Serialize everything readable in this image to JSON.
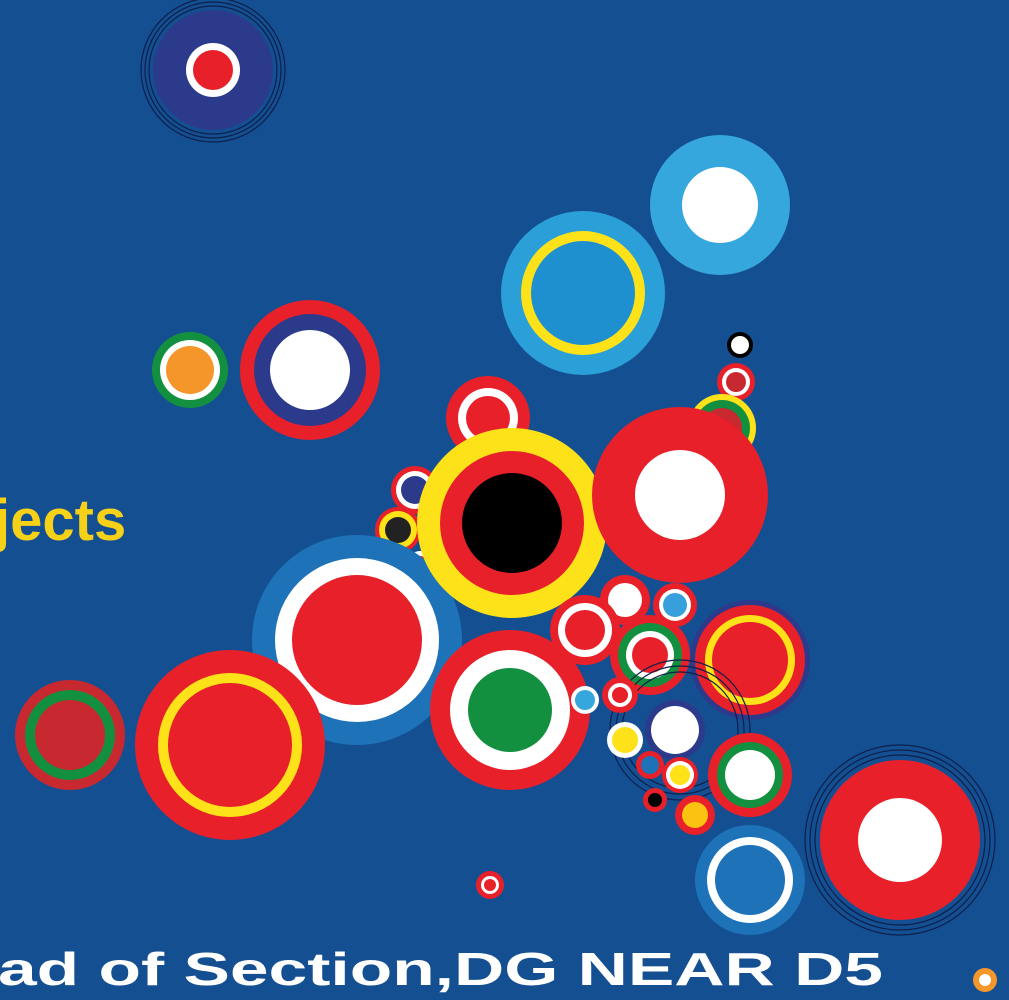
{
  "texts": {
    "title": "jects",
    "subtitle": "ad of Section,DG NEAR D5"
  }
}
